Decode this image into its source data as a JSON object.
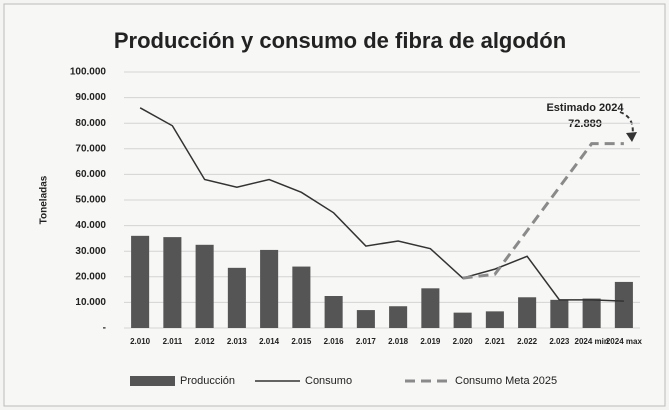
{
  "chart_data": {
    "type": "bar",
    "title": "Producción y consumo de fibra de algodón",
    "y_label": "Toneladas",
    "categories": [
      "2.010",
      "2.011",
      "2.012",
      "2.013",
      "2.014",
      "2.015",
      "2.016",
      "2.017",
      "2.018",
      "2.019",
      "2.020",
      "2.021",
      "2.022",
      "2.023",
      "2024 min",
      "2024 max"
    ],
    "series": [
      {
        "name": "Producción",
        "type": "bar",
        "color": "#555555",
        "values": [
          36000,
          35500,
          32500,
          23500,
          30500,
          24000,
          12500,
          7000,
          8500,
          15500,
          6000,
          6500,
          12000,
          11000,
          11500,
          18000
        ]
      },
      {
        "name": "Consumo",
        "type": "line",
        "color": "#333333",
        "dashed": false,
        "values": [
          86000,
          79000,
          58000,
          55000,
          58000,
          53000,
          45000,
          32000,
          34000,
          31000,
          19500,
          23000,
          28000,
          11000,
          11000,
          10500
        ]
      },
      {
        "name": "Consumo Meta 2025",
        "type": "line",
        "color": "#8a8a8a",
        "dashed": true,
        "values": [
          null,
          null,
          null,
          null,
          null,
          null,
          null,
          null,
          null,
          null,
          19500,
          21000,
          38000,
          55000,
          72000,
          72000
        ]
      }
    ],
    "annotation": {
      "lines": [
        "Estimado 2024",
        "72.889"
      ]
    },
    "ylim": [
      0,
      100000
    ],
    "yticks": [
      {
        "value": 0,
        "label": "-"
      },
      {
        "value": 10000,
        "label": "10.000"
      },
      {
        "value": 20000,
        "label": "20.000"
      },
      {
        "value": 30000,
        "label": "30.000"
      },
      {
        "value": 40000,
        "label": "40.000"
      },
      {
        "value": 50000,
        "label": "50.000"
      },
      {
        "value": 60000,
        "label": "60.000"
      },
      {
        "value": 70000,
        "label": "70.000"
      },
      {
        "value": 80000,
        "label": "80.000"
      },
      {
        "value": 90000,
        "label": "90.000"
      },
      {
        "value": 100000,
        "label": "100.000"
      }
    ],
    "grid": true
  }
}
